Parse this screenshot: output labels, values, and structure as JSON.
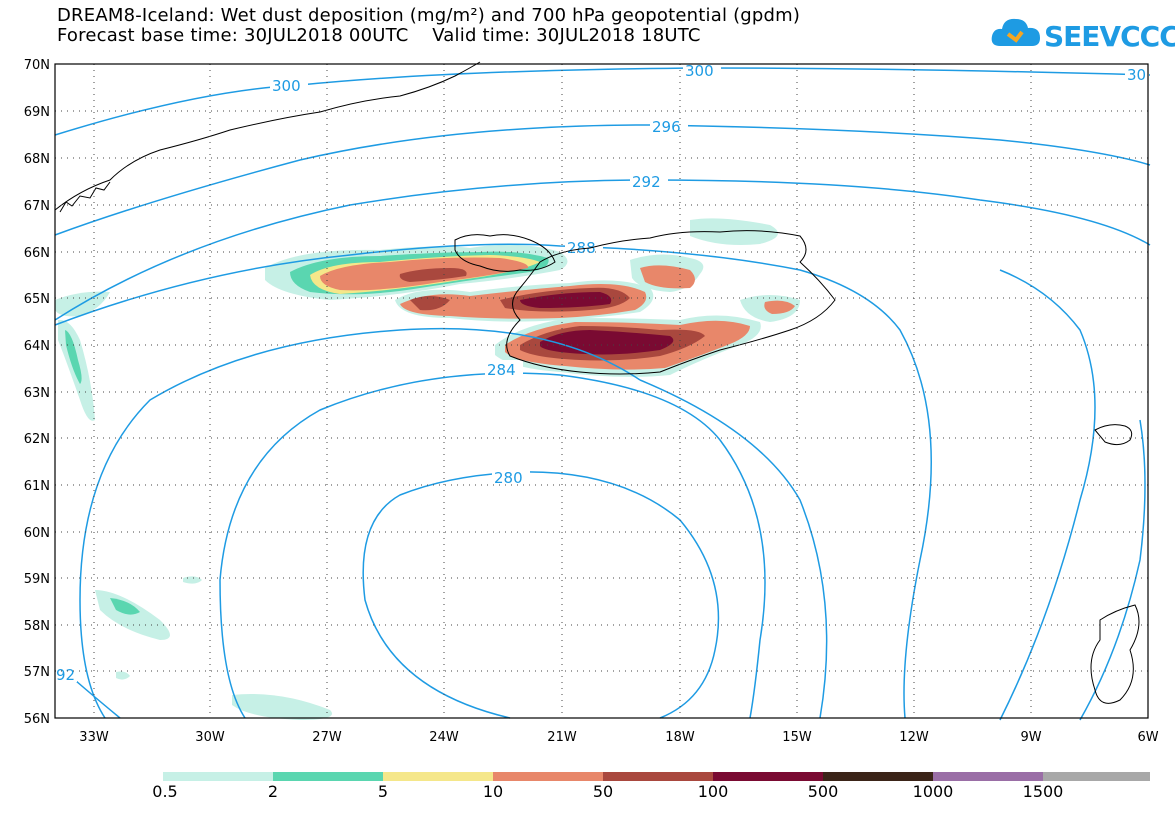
{
  "title": {
    "line1": "DREAM8-Iceland: Wet dust deposition (mg/m²) and 700 hPa geopotential (gpdm)",
    "line2": "Forecast base time: 30JUL2018 00UTC    Valid time: 30JUL2018 18UTC"
  },
  "logo": {
    "text": "SEEVCCC",
    "icon": "cloud-icon"
  },
  "axes": {
    "lat_labels": [
      "70N",
      "69N",
      "68N",
      "67N",
      "66N",
      "65N",
      "64N",
      "63N",
      "62N",
      "61N",
      "60N",
      "59N",
      "58N",
      "57N",
      "56N"
    ],
    "lon_labels": [
      "33W",
      "30W",
      "27W",
      "24W",
      "21W",
      "18W",
      "15W",
      "12W",
      "9W",
      "6W"
    ]
  },
  "contours": {
    "labels": [
      "300",
      "300",
      "30",
      "296",
      "292",
      "288",
      "284",
      "280",
      "92"
    ]
  },
  "colorbar": {
    "labels": [
      "0.5",
      "2",
      "5",
      "10",
      "50",
      "100",
      "500",
      "1000",
      "1500"
    ],
    "colors": [
      "#c6f0e6",
      "#5ad6b0",
      "#f5e78a",
      "#e8876a",
      "#a9483e",
      "#7a0a32",
      "#3b2418",
      "#9a6ea6",
      "#a8a8a8"
    ]
  },
  "colors": {
    "contour": "#1e9be3",
    "coast": "#000000"
  }
}
